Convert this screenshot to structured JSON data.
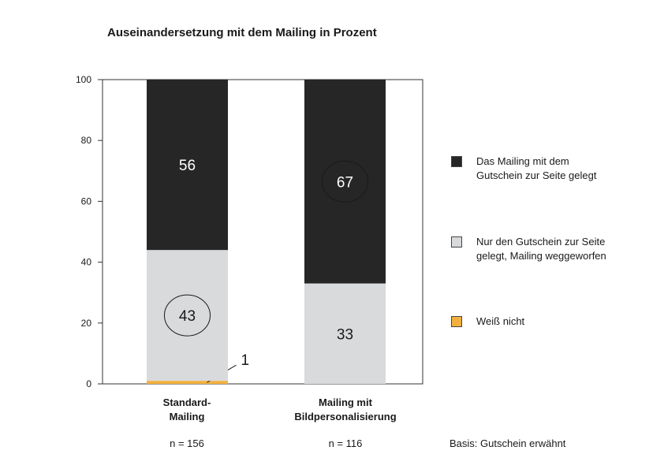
{
  "chart_data": {
    "type": "bar",
    "stacked": true,
    "title": "Auseinandersetzung mit dem Mailing in Prozent",
    "categories": [
      "Standard-\nMailing",
      "Mailing mit\nBildpersonalisierung"
    ],
    "sample_sizes": [
      "n = 156",
      "n = 116"
    ],
    "ylim": [
      0,
      100
    ],
    "yticks": [
      "0",
      "20",
      "40",
      "60",
      "80",
      "100"
    ],
    "series": [
      {
        "name": "Weiß nicht",
        "values": [
          1,
          0
        ],
        "color": "#f2b13e",
        "labels": [
          "1",
          ""
        ]
      },
      {
        "name": "Nur den Gutschein zur Seite gelegt, Mailing weggeworfen",
        "values": [
          43,
          33
        ],
        "color": "#d9dadc",
        "labels": [
          "43",
          "33"
        ]
      },
      {
        "name": "Das Mailing mit dem Gutschein zur Seite gelegt",
        "values": [
          56,
          67
        ],
        "color": "#262626",
        "labels": [
          "56",
          "67"
        ]
      }
    ],
    "circled_labels": [
      [
        "43"
      ],
      [
        "67"
      ]
    ],
    "legend_position": "right",
    "grid": false,
    "note": "Basis: Gutschein erwähnt"
  }
}
